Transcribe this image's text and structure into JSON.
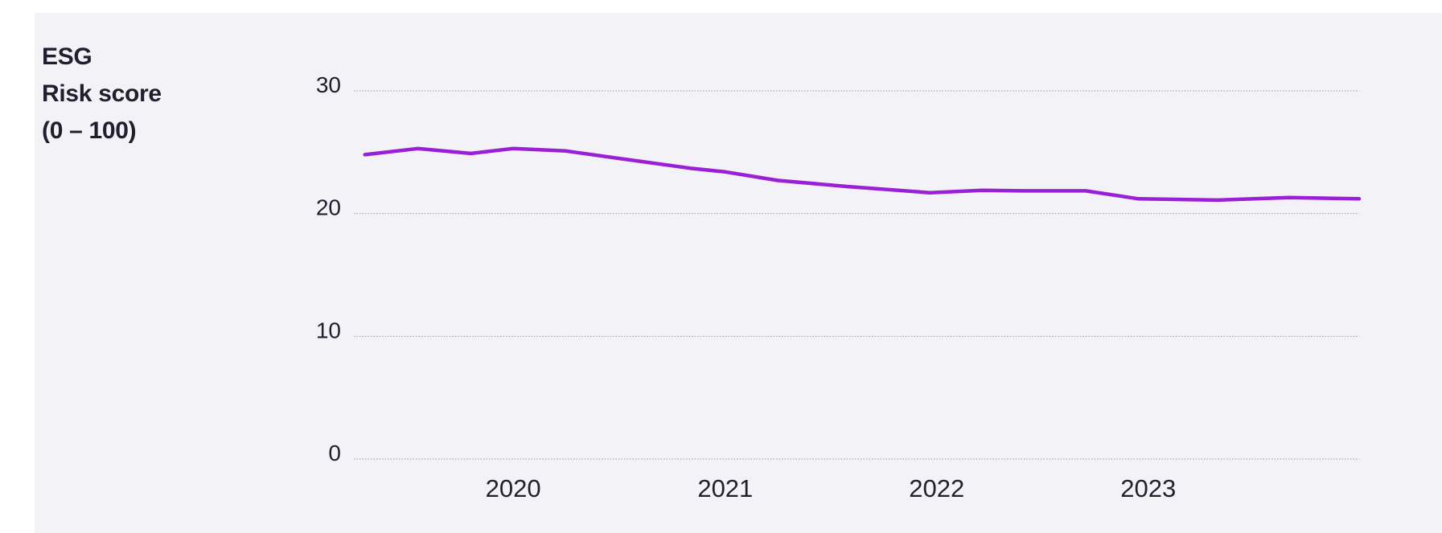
{
  "chart_data": {
    "type": "line",
    "ylabel_lines": [
      "ESG",
      "Risk score",
      "(0 – 100)"
    ],
    "xlabel": "",
    "ylim": [
      0,
      30
    ],
    "yticks": [
      {
        "value": 0,
        "label": "0"
      },
      {
        "value": 10,
        "label": "10"
      },
      {
        "value": 20,
        "label": "20"
      },
      {
        "value": 30,
        "label": "30"
      }
    ],
    "xlim": [
      "2019-04-01",
      "2023-12-31"
    ],
    "xticks": [
      {
        "value": "2020-01-01",
        "label": "2020"
      },
      {
        "value": "2021-01-01",
        "label": "2021"
      },
      {
        "value": "2022-01-01",
        "label": "2022"
      },
      {
        "value": "2023-01-01",
        "label": "2023"
      }
    ],
    "grid": true,
    "legend": "none",
    "series": [
      {
        "color": "#9a1fd6",
        "points": [
          {
            "x": "2019-04-20",
            "y": 24.8
          },
          {
            "x": "2019-07-20",
            "y": 25.3
          },
          {
            "x": "2019-10-20",
            "y": 24.9
          },
          {
            "x": "2020-01-01",
            "y": 25.3
          },
          {
            "x": "2020-04-01",
            "y": 25.1
          },
          {
            "x": "2020-07-01",
            "y": 24.5
          },
          {
            "x": "2020-11-01",
            "y": 23.7
          },
          {
            "x": "2021-01-01",
            "y": 23.4
          },
          {
            "x": "2021-04-01",
            "y": 22.7
          },
          {
            "x": "2021-08-01",
            "y": 22.2
          },
          {
            "x": "2021-12-20",
            "y": 21.7
          },
          {
            "x": "2022-03-20",
            "y": 21.9
          },
          {
            "x": "2022-06-01",
            "y": 21.85
          },
          {
            "x": "2022-09-15",
            "y": 21.85
          },
          {
            "x": "2022-12-15",
            "y": 21.2
          },
          {
            "x": "2023-05-01",
            "y": 21.1
          },
          {
            "x": "2023-09-01",
            "y": 21.3
          },
          {
            "x": "2023-12-31",
            "y": 21.2
          }
        ]
      }
    ]
  }
}
